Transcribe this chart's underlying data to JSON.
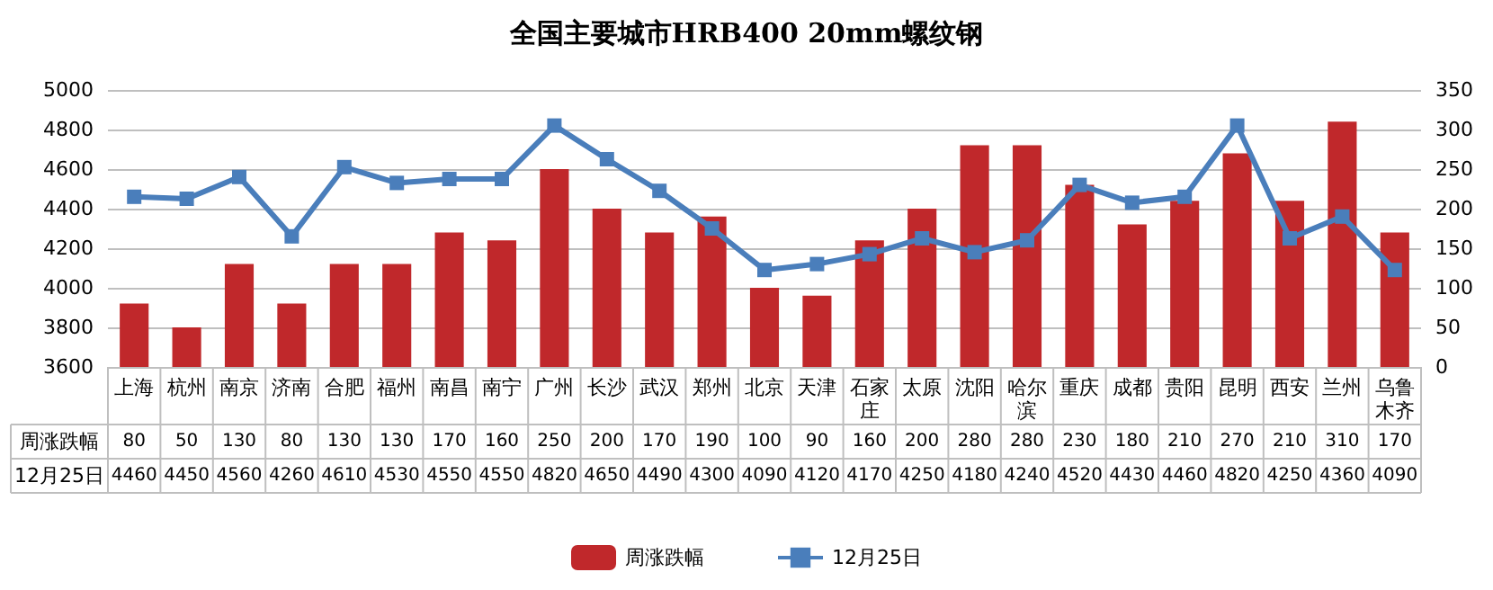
{
  "chart_data": {
    "type": "bar",
    "title": "全国主要城市HRB400 20mm螺纹钢",
    "categories": [
      "上海",
      "杭州",
      "南京",
      "济南",
      "合肥",
      "福州",
      "南昌",
      "南宁",
      "广州",
      "长沙",
      "武汉",
      "郑州",
      "北京",
      "天津",
      "石家庄",
      "太原",
      "沈阳",
      "哈尔滨",
      "重庆",
      "成都",
      "贵阳",
      "昆明",
      "西安",
      "兰州",
      "乌鲁木齐"
    ],
    "series": [
      {
        "name": "周涨跌幅",
        "axis": "y2",
        "color": "#c0282b",
        "values": [
          80,
          50,
          130,
          80,
          130,
          130,
          170,
          160,
          250,
          200,
          170,
          190,
          100,
          90,
          160,
          200,
          280,
          280,
          230,
          180,
          210,
          270,
          210,
          310,
          170
        ]
      },
      {
        "name": "12月25日",
        "type": "line",
        "axis": "y",
        "color": "#4a7ebb",
        "marker": "square",
        "values": [
          4460,
          4450,
          4560,
          4260,
          4610,
          4530,
          4550,
          4550,
          4820,
          4650,
          4490,
          4300,
          4090,
          4120,
          4170,
          4250,
          4180,
          4240,
          4520,
          4430,
          4460,
          4820,
          4250,
          4360,
          4090
        ]
      }
    ],
    "ylim": [
      3600,
      5000
    ],
    "yticks": [
      3600,
      3800,
      4000,
      4200,
      4400,
      4600,
      4800,
      5000
    ],
    "y2lim": [
      0,
      350
    ],
    "y2ticks": [
      0,
      50,
      100,
      150,
      200,
      250,
      300,
      350
    ],
    "grid": "y",
    "legend": "bottom",
    "data_labels": true
  }
}
